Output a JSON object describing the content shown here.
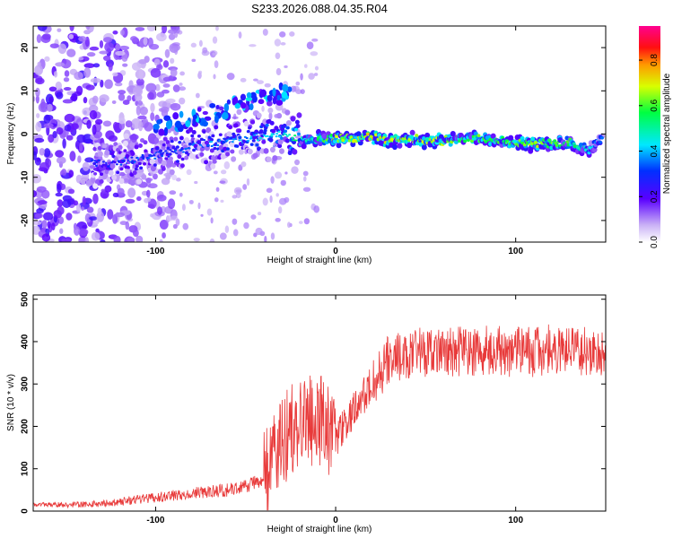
{
  "figure_title": "S233.2026.088.04.35.R04",
  "chart_data": [
    {
      "type": "heatmap",
      "title": "S233.2026.088.04.35.R04",
      "xlabel": "Height of straight line (km)",
      "ylabel": "Frequency (Hz)",
      "xlim": [
        -168,
        150
      ],
      "ylim": [
        -25,
        25
      ],
      "xticks": [
        -100,
        0,
        100
      ],
      "xtick_labels": [
        "-100",
        "0",
        "100"
      ],
      "yticks": [
        -20,
        -10,
        0,
        10,
        20
      ],
      "ytick_labels": [
        "-20",
        "-10",
        "0",
        "10",
        "20"
      ],
      "colorbar": {
        "label": "Normalized spectral amplitude",
        "range": [
          0,
          0.95
        ],
        "ticks": [
          0.0,
          0.2,
          0.4,
          0.6,
          0.8
        ],
        "tick_labels": [
          "0.0",
          "0.2",
          "0.4",
          "0.6",
          "0.8"
        ]
      },
      "ridge": {
        "x": [
          -130,
          -110,
          -90,
          -70,
          -50,
          -30,
          -20,
          -10,
          0,
          10,
          20,
          30,
          40,
          50,
          60,
          70,
          80,
          90,
          100,
          110,
          120,
          130,
          140,
          148
        ],
        "frequency": [
          -7,
          -6,
          -4,
          -2,
          -1,
          0,
          -1.5,
          -1,
          -1,
          -1,
          -0.5,
          -1.5,
          -1,
          -1.5,
          -1.5,
          -1,
          -1,
          -1.5,
          -2,
          -2.5,
          -2,
          -2,
          -4,
          -1
        ],
        "peak_amplitude": [
          0.3,
          0.35,
          0.35,
          0.4,
          0.4,
          0.5,
          0.6,
          0.7,
          0.85,
          0.9,
          0.95,
          0.9,
          0.85,
          0.9,
          0.85,
          0.8,
          0.8,
          0.75,
          0.8,
          0.85,
          0.8,
          0.75,
          0.6,
          0.5
        ]
      }
    },
    {
      "type": "line",
      "title": "",
      "xlabel": "Height of straight line (km)",
      "ylabel": "SNR (10 * v/v)",
      "xlim": [
        -168,
        150
      ],
      "ylim": [
        0,
        510
      ],
      "xticks": [
        -100,
        0,
        100
      ],
      "xtick_labels": [
        "-100",
        "0",
        "100"
      ],
      "yticks": [
        0,
        100,
        200,
        300,
        400,
        500
      ],
      "ytick_labels": [
        "0",
        "100",
        "200",
        "300",
        "400",
        "500"
      ],
      "series": [
        {
          "name": "SNR",
          "color": "#e83a3a",
          "x": [
            -168,
            -150,
            -130,
            -120,
            -100,
            -80,
            -60,
            -50,
            -40,
            -35,
            -30,
            -25,
            -20,
            -15,
            -10,
            -5,
            0,
            5,
            10,
            15,
            20,
            25,
            30,
            40,
            50,
            60,
            70,
            80,
            90,
            100,
            110,
            120,
            130,
            140,
            150
          ],
          "values": [
            15,
            15,
            18,
            22,
            32,
            42,
            50,
            60,
            75,
            110,
            160,
            190,
            200,
            210,
            220,
            200,
            170,
            200,
            240,
            270,
            300,
            330,
            360,
            370,
            375,
            380,
            375,
            380,
            380,
            375,
            375,
            385,
            380,
            380,
            380
          ]
        }
      ]
    }
  ]
}
